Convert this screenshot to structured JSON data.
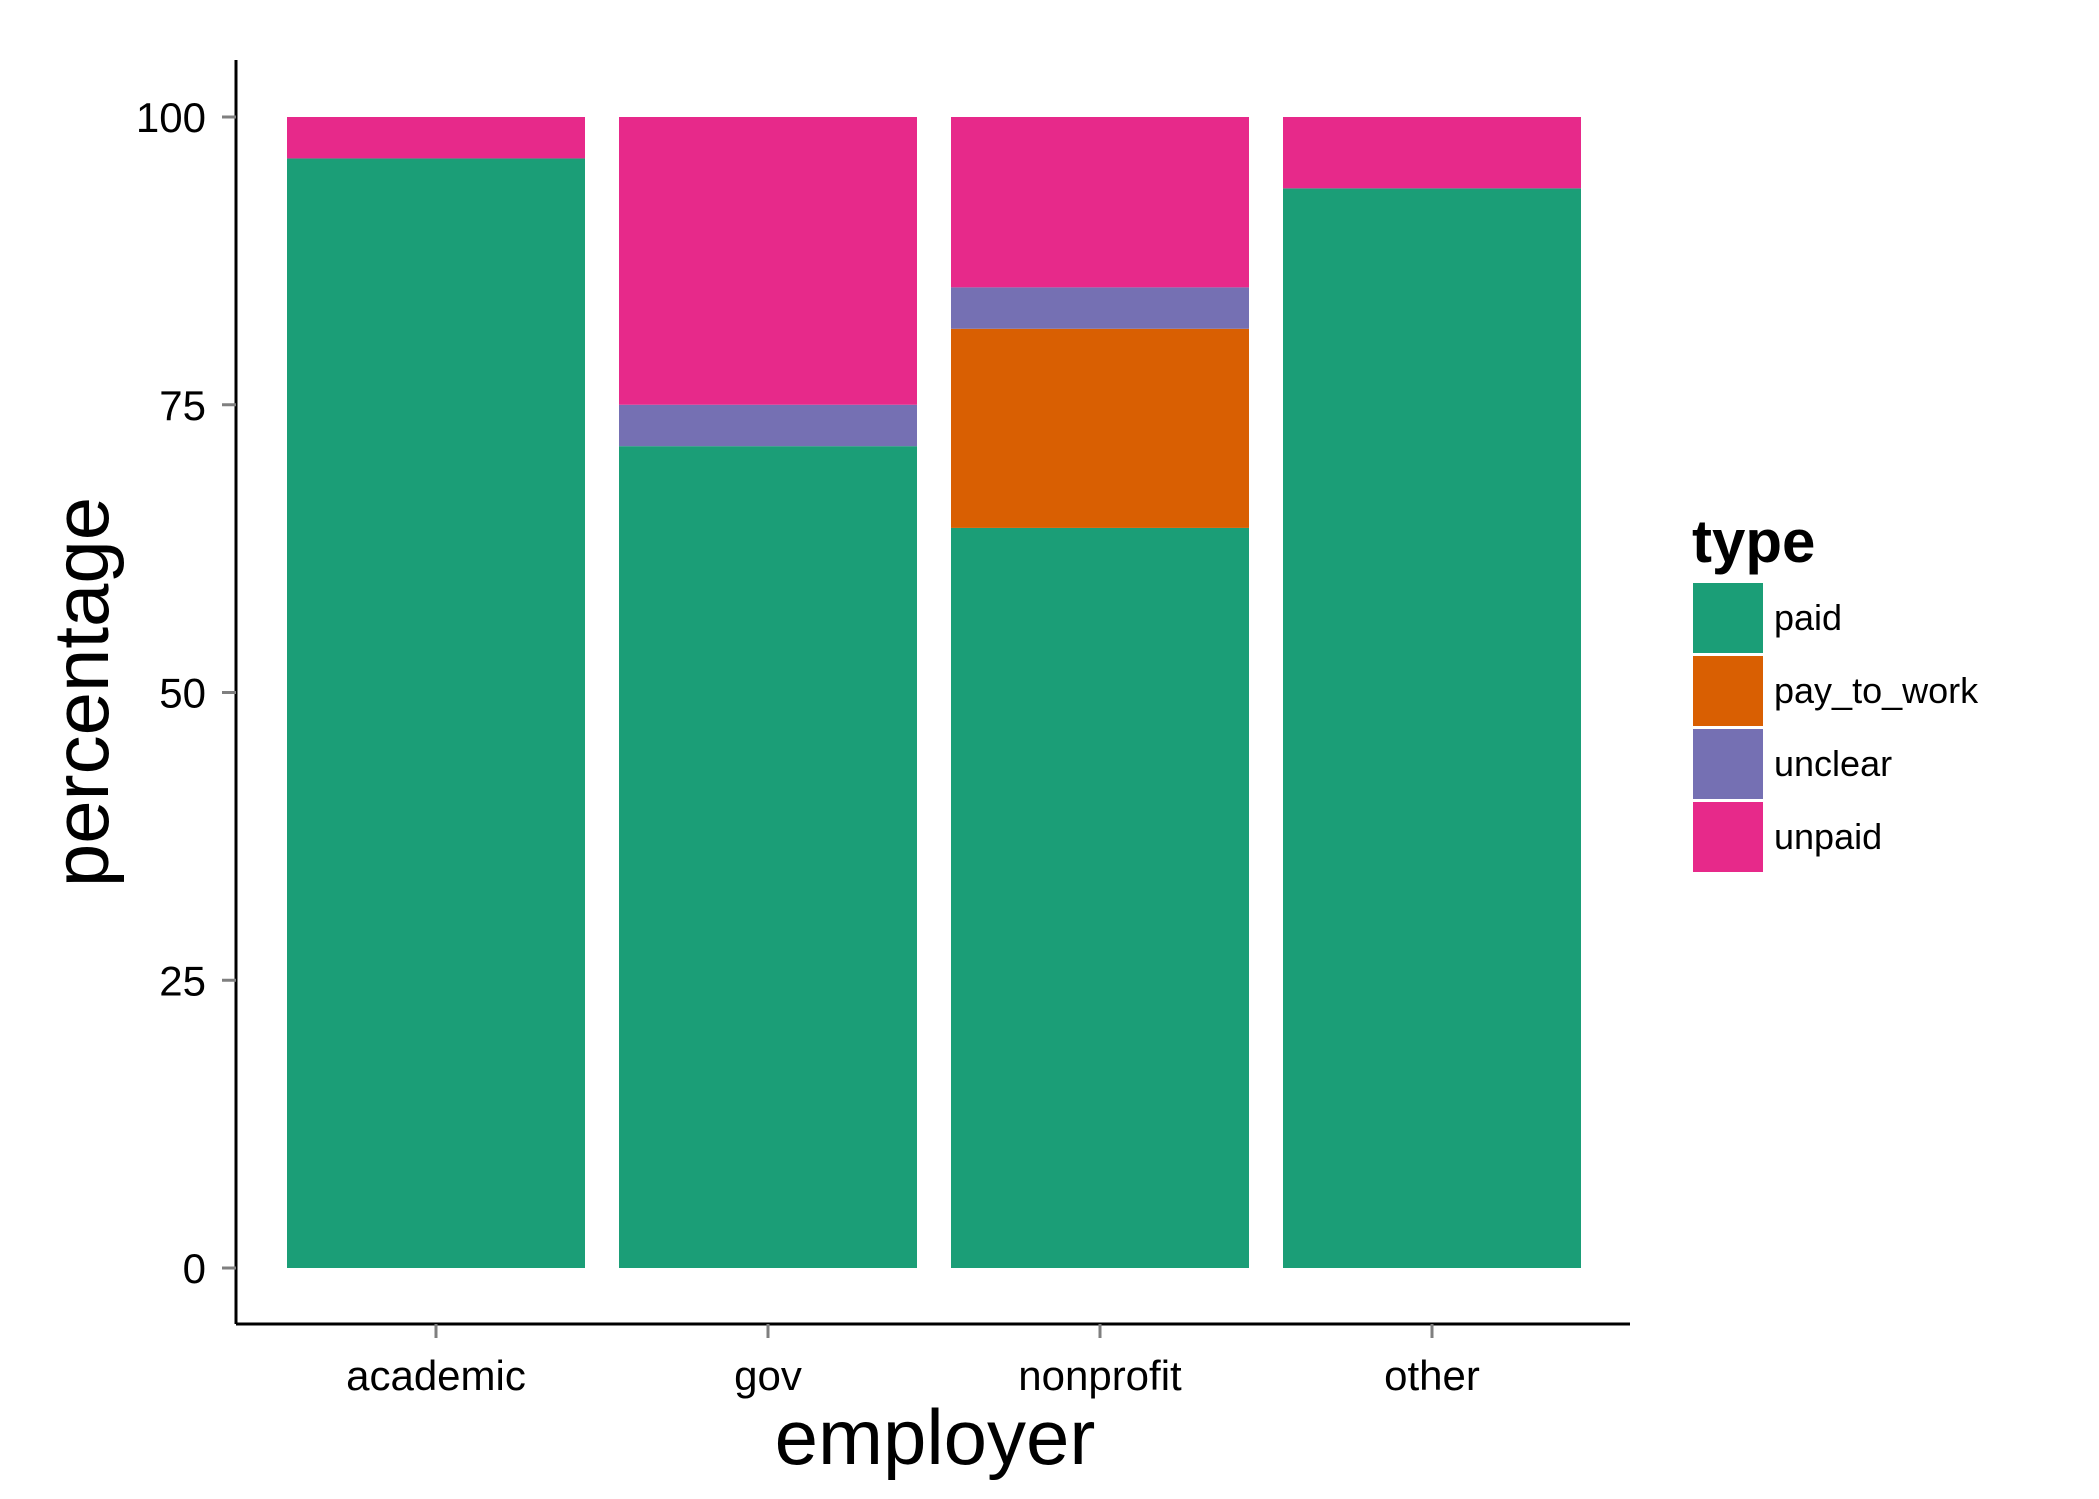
{
  "chart_data": {
    "type": "bar",
    "stacked": true,
    "categories": [
      "academic",
      "gov",
      "nonprofit",
      "other"
    ],
    "series": [
      {
        "name": "paid",
        "color": "#1b9e77",
        "values": [
          96.4,
          71.4,
          64.3,
          93.8
        ]
      },
      {
        "name": "pay_to_work",
        "color": "#d95f02",
        "values": [
          0,
          0,
          17.3,
          0
        ]
      },
      {
        "name": "unclear",
        "color": "#7570b3",
        "values": [
          0,
          3.6,
          3.6,
          0
        ]
      },
      {
        "name": "unpaid",
        "color": "#e7298a",
        "values": [
          3.6,
          25.0,
          14.8,
          6.2
        ]
      }
    ],
    "xlabel": "employer",
    "ylabel": "percentage",
    "ylim": [
      0,
      100
    ],
    "yticks": [
      0,
      25,
      50,
      75,
      100
    ],
    "legend_title": "type",
    "legend_position": "right",
    "grid": false
  }
}
